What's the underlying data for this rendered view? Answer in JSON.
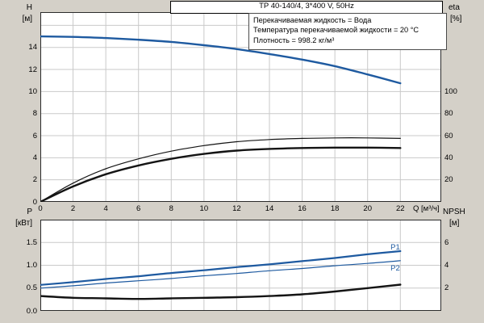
{
  "title_box": "TP 40-140/4, 3*400 V, 50Hz",
  "info_lines": [
    "Перекачиваемая жидкость = Вода",
    "Температура перекачиваемой жидкости = 20 °C",
    "Плотность = 998.2 кг/м³"
  ],
  "axes": {
    "left_top_label": "H",
    "left_top_unit": "[м]",
    "right_top_label": "eta",
    "right_top_unit": "[%]",
    "left_bottom_label": "P",
    "left_bottom_unit": "[кВт]",
    "right_bottom_label": "NPSH",
    "right_bottom_unit": "[м]",
    "x_label": "Q [м³/ч]"
  },
  "colors": {
    "background": "#d4d0c8",
    "plot_background": "#ffffff",
    "grid": "#c9c9c9",
    "frame": "#2b2b2b",
    "curve_blue": "#1e5aa0",
    "curve_black": "#141414"
  },
  "chart_data": [
    {
      "type": "line",
      "title": "TP 40-140/4, 3*400 V, 50Hz",
      "xlabel": "Q [м³/ч]",
      "ylabel_left": "H [м]",
      "ylabel_right": "eta [%]",
      "xlim": [
        0,
        24.5
      ],
      "ylim_left": [
        0,
        17.2
      ],
      "ylim_right": [
        0,
        172
      ],
      "grid": true,
      "x_ticks": [
        "0",
        "2",
        "4",
        "6",
        "8",
        "10",
        "12",
        "14",
        "16",
        "18",
        "20",
        "22"
      ],
      "y_ticks_left": [
        "14",
        "12",
        "10",
        "8",
        "6",
        "4",
        "2",
        "0"
      ],
      "y_ticks_right": [
        "100",
        "80",
        "60",
        "40",
        "20"
      ],
      "grid_x": [
        2,
        4,
        6,
        8,
        10,
        12,
        14,
        16,
        18,
        20,
        22
      ],
      "grid_y": [
        2,
        4,
        6,
        8,
        10,
        12,
        14,
        16
      ],
      "x": [
        0,
        2,
        4,
        6,
        8,
        10,
        12,
        14,
        16,
        18,
        20,
        22
      ],
      "series": [
        {
          "name": "H",
          "axis": "left",
          "color": "#1e5aa0",
          "width": 2.4,
          "values": [
            15.0,
            14.95,
            14.85,
            14.7,
            14.5,
            14.2,
            13.85,
            13.4,
            12.9,
            12.3,
            11.55,
            10.75
          ]
        },
        {
          "name": "eta1",
          "axis": "right",
          "color": "#141414",
          "width": 1.2,
          "values": [
            0,
            17,
            30,
            39,
            46,
            51,
            54.5,
            56.5,
            57.5,
            58,
            58,
            57.5
          ]
        },
        {
          "name": "eta2",
          "axis": "right",
          "color": "#141414",
          "width": 2.4,
          "values": [
            0,
            14,
            25,
            33,
            39,
            43.5,
            46.5,
            48,
            48.8,
            49.2,
            49.2,
            48.8
          ]
        }
      ]
    },
    {
      "type": "line",
      "xlabel": "Q [м³/ч]",
      "ylabel_left": "P [кВт]",
      "ylabel_right": "NPSH [м]",
      "xlim": [
        0,
        24.5
      ],
      "ylim_left": [
        0,
        2.0
      ],
      "ylim_right": [
        0,
        8
      ],
      "grid": true,
      "y_ticks_left": [
        "1.5",
        "1.0",
        "0.5",
        "0.0"
      ],
      "y_ticks_right": [
        "6",
        "4",
        "2"
      ],
      "grid_x": [
        2,
        4,
        6,
        8,
        10,
        12,
        14,
        16,
        18,
        20,
        22
      ],
      "grid_y": [
        0.5,
        1.0,
        1.5
      ],
      "x": [
        0,
        2,
        4,
        6,
        8,
        10,
        12,
        14,
        16,
        18,
        20,
        22
      ],
      "series": [
        {
          "name": "P1",
          "axis": "left",
          "color": "#1e5aa0",
          "width": 2.2,
          "values": [
            0.57,
            0.63,
            0.7,
            0.76,
            0.83,
            0.89,
            0.96,
            1.02,
            1.09,
            1.16,
            1.24,
            1.31
          ]
        },
        {
          "name": "P2",
          "axis": "left",
          "color": "#1e5aa0",
          "width": 1.2,
          "values": [
            0.5,
            0.55,
            0.61,
            0.66,
            0.71,
            0.77,
            0.82,
            0.88,
            0.93,
            0.99,
            1.04,
            1.1
          ]
        },
        {
          "name": "NPSH",
          "axis": "right",
          "color": "#141414",
          "width": 2.4,
          "values": [
            1.3,
            1.15,
            1.1,
            1.05,
            1.1,
            1.15,
            1.2,
            1.3,
            1.45,
            1.7,
            2.0,
            2.3
          ]
        }
      ],
      "annotations": [
        {
          "text": "P1",
          "q": 21.4,
          "value": 1.38,
          "color": "#1e5aa0"
        },
        {
          "text": "P2",
          "q": 21.4,
          "value": 0.92,
          "color": "#1e5aa0"
        }
      ]
    }
  ]
}
